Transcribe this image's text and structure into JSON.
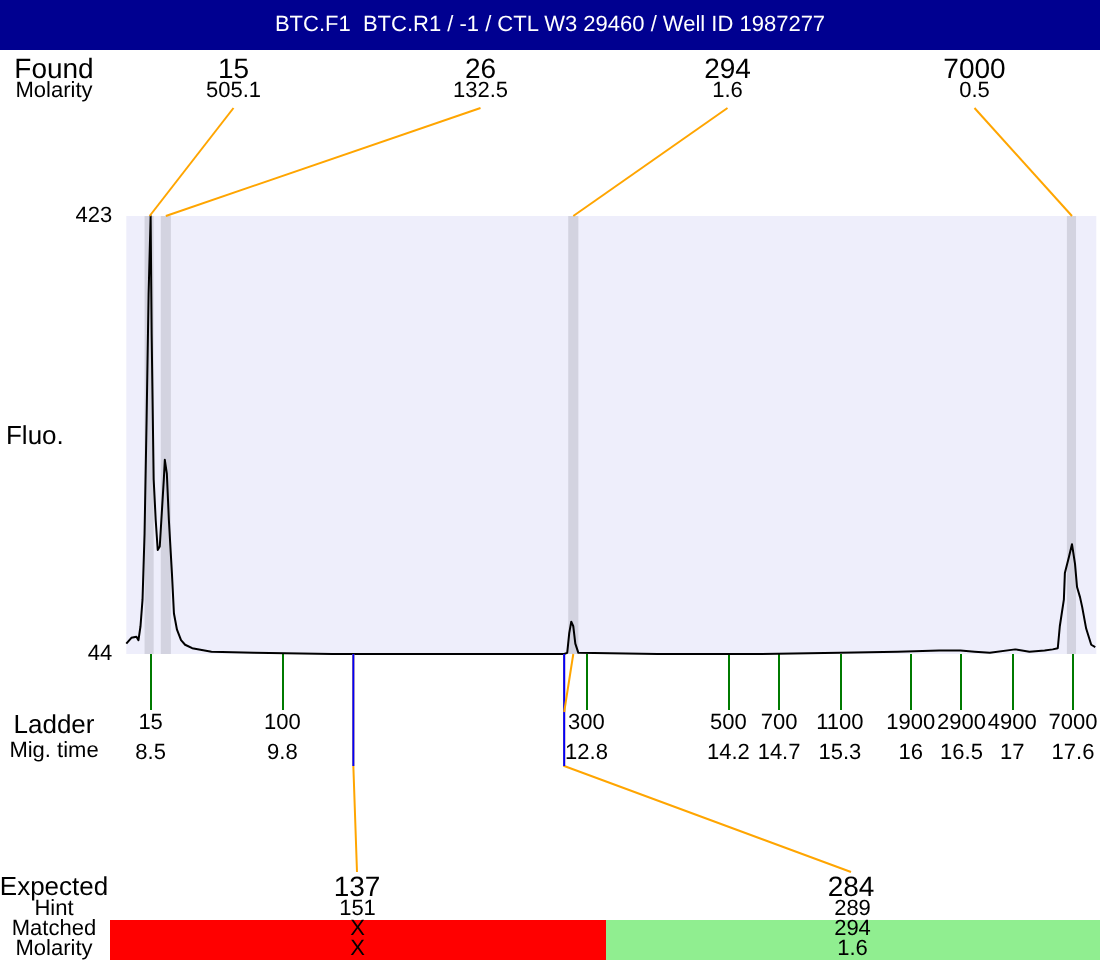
{
  "chart_data": [
    {
      "type": "line",
      "title": "BTC.F1  BTC.R1 / -1 / CTL W3 29460 / Well ID 1987277",
      "ylabel": "Fluo.",
      "xlabel": "Mig. time",
      "x": [
        8.26,
        8.31,
        8.36,
        8.38,
        8.4,
        8.42,
        8.44,
        8.46,
        8.48,
        8.5,
        8.51,
        8.53,
        8.55,
        8.57,
        8.59,
        8.61,
        8.63,
        8.64,
        8.66,
        8.68,
        8.71,
        8.73,
        8.76,
        8.8,
        8.84,
        8.91,
        9.1,
        9.52,
        10.29,
        11.13,
        12.0,
        12.58,
        12.61,
        12.63,
        12.65,
        12.67,
        12.69,
        12.72,
        13.5,
        14.5,
        15.3,
        15.87,
        16.28,
        16.49,
        16.63,
        16.78,
        17.03,
        17.17,
        17.32,
        17.4,
        17.45,
        17.47,
        17.51,
        17.52,
        17.56,
        17.59,
        17.62,
        17.64,
        17.67,
        17.69,
        17.73,
        17.78,
        17.82
      ],
      "values": [
        53,
        58,
        59,
        56,
        68,
        91,
        148,
        246,
        356,
        423,
        321,
        195,
        160,
        134,
        137,
        166,
        195,
        212,
        200,
        160,
        114,
        79,
        65,
        56,
        52,
        49,
        46,
        45,
        44,
        44,
        44,
        44,
        45,
        62,
        72,
        68,
        53,
        45,
        44,
        44,
        45,
        46,
        47,
        47,
        46,
        45,
        48,
        46,
        47,
        48,
        49,
        68,
        91,
        114,
        128,
        139,
        122,
        102,
        93,
        85,
        66,
        52,
        50
      ],
      "color": "#000000",
      "xlim": [
        8.26,
        17.83
      ],
      "xticks": [
        8.5,
        9.8,
        12.8,
        14.2,
        14.7,
        15.3,
        16,
        16.5,
        17,
        17.6
      ],
      "ylim": [
        44,
        423
      ],
      "yticks": [
        44,
        423
      ],
      "bands": [
        {
          "axis": "x",
          "from": 8.44,
          "to": 8.53,
          "color": "#d3d3e0"
        },
        {
          "axis": "x",
          "from": 8.6,
          "to": 8.7,
          "color": "#d3d3e0"
        },
        {
          "axis": "x",
          "from": 12.62,
          "to": 12.72,
          "color": "#d3d3e0"
        },
        {
          "axis": "x",
          "from": 17.54,
          "to": 17.63,
          "color": "#d3d3e0"
        }
      ],
      "annotations": [
        "Found",
        "Molarity",
        "Expected",
        {
          "text": "15",
          "x": 8.49,
          "y": 423
        },
        {
          "text": "505.1",
          "x": 8.49,
          "y": 423
        },
        {
          "text": "26",
          "x": 8.65,
          "y": 423
        },
        {
          "text": "132.5",
          "x": 8.65,
          "y": 423
        },
        {
          "text": "294",
          "x": 12.67,
          "y": 423
        },
        {
          "text": "1.6",
          "x": 12.67,
          "y": 423
        },
        {
          "text": "7000",
          "x": 17.59,
          "y": 423
        },
        {
          "text": "0.5",
          "x": 17.59,
          "y": 423
        },
        {
          "text": "137",
          "x": 10.5,
          "y": 44
        },
        {
          "text": "284",
          "x": 12.58,
          "y": 44
        }
      ]
    },
    {
      "type": "other",
      "data_labels": true,
      "series": [
        {
          "name": "Ladder",
          "values": [
            15,
            100,
            300,
            500,
            700,
            1100,
            1900,
            2900,
            4900,
            7000
          ]
        }
      ]
    },
    {
      "type": "other",
      "annotations": [
        "Hint",
        "151",
        "289",
        "Matched",
        "X",
        "294",
        "Molarity",
        "X",
        "1.6"
      ],
      "colors": [
        "#ff0000",
        "#90ee90"
      ]
    }
  ]
}
